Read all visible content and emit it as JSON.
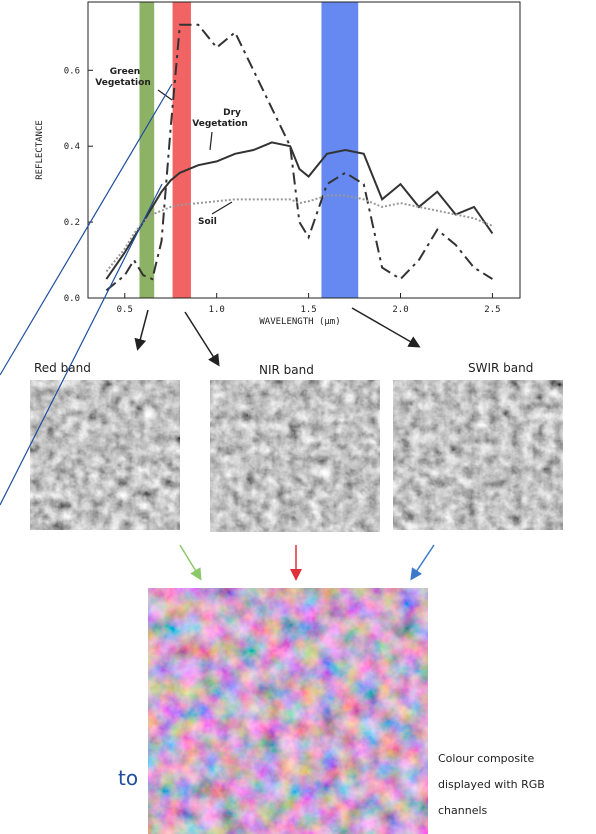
{
  "chart_data": {
    "type": "line",
    "x_label": "WAVELENGTH (µm)",
    "y_label": "REFLECTANCE",
    "x": [
      0.4,
      0.5,
      0.55,
      0.6,
      0.65,
      0.7,
      0.75,
      0.8,
      0.9,
      1.0,
      1.1,
      1.2,
      1.3,
      1.4,
      1.45,
      1.5,
      1.6,
      1.7,
      1.8,
      1.9,
      2.0,
      2.1,
      2.2,
      2.3,
      2.4,
      2.5
    ],
    "series": [
      {
        "name": "Green Vegetation",
        "color": "#333333",
        "dash": "12 5 3 5",
        "values": [
          0.02,
          0.06,
          0.1,
          0.06,
          0.05,
          0.15,
          0.45,
          0.72,
          0.72,
          0.66,
          0.7,
          0.6,
          0.5,
          0.4,
          0.2,
          0.16,
          0.3,
          0.33,
          0.3,
          0.08,
          0.05,
          0.1,
          0.18,
          0.14,
          0.08,
          0.05
        ]
      },
      {
        "name": "Dry Vegetation",
        "color": "#333333",
        "dash": "none",
        "values": [
          0.05,
          0.12,
          0.16,
          0.2,
          0.24,
          0.28,
          0.31,
          0.33,
          0.35,
          0.36,
          0.38,
          0.39,
          0.41,
          0.4,
          0.34,
          0.32,
          0.38,
          0.39,
          0.38,
          0.26,
          0.3,
          0.24,
          0.28,
          0.22,
          0.24,
          0.17
        ]
      },
      {
        "name": "Soil",
        "color": "#999999",
        "dash": "2 2",
        "values": [
          0.07,
          0.13,
          0.17,
          0.2,
          0.22,
          0.23,
          0.24,
          0.245,
          0.25,
          0.255,
          0.26,
          0.26,
          0.26,
          0.26,
          0.25,
          0.255,
          0.27,
          0.27,
          0.26,
          0.24,
          0.25,
          0.24,
          0.23,
          0.22,
          0.21,
          0.19
        ]
      }
    ],
    "bands": [
      {
        "range": [
          0.58,
          0.66
        ],
        "color": "#7aa54a"
      },
      {
        "range": [
          0.76,
          0.86
        ],
        "color": "#f04848"
      },
      {
        "range": [
          1.57,
          1.77
        ],
        "color": "#4a74ee"
      }
    ],
    "xlim": [
      0.3,
      2.65
    ],
    "ylim": [
      0,
      0.78
    ],
    "xticks": [
      0.5,
      {
        "value": 1,
        "label": "1.0"
      },
      1.5,
      {
        "value": 2,
        "label": "2.0"
      },
      2.5
    ],
    "yticks": [
      {
        "value": 0,
        "label": "0.0"
      },
      0.2,
      0.4,
      0.6
    ]
  },
  "band_images": [
    {
      "label": "Red band"
    },
    {
      "label": "NIR band"
    },
    {
      "label": "SWIR band"
    }
  ],
  "composite": {
    "caption": [
      "Colour composite",
      "displayed with RGB",
      "channels"
    ]
  },
  "fragment": "to"
}
